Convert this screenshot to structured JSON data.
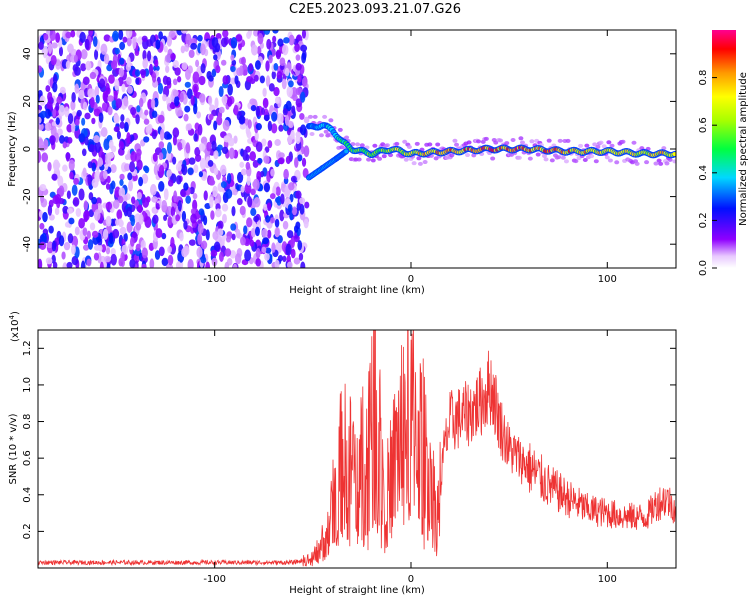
{
  "title": "C2E5.2023.093.21.07.G26",
  "chart_data": [
    {
      "type": "heatmap",
      "xlabel": "Height of straight line (km)",
      "ylabel": "Frequency (Hz)",
      "xlim": [
        -190,
        135
      ],
      "ylim": [
        -50,
        50
      ],
      "x_ticks": [
        -100,
        0,
        100
      ],
      "x_tick_labels": [
        "-100",
        "0",
        "100"
      ],
      "y_ticks": [
        -40,
        -20,
        0,
        20,
        40
      ],
      "y_tick_labels": [
        "-40",
        "-20",
        "0",
        "20",
        "40"
      ],
      "colorbar": {
        "label": "Normalized spectral amplitude",
        "range": [
          0,
          1
        ],
        "ticks": [
          0.0,
          0.2,
          0.4,
          0.6,
          0.8
        ],
        "tick_labels": [
          "0.0",
          "0.2",
          "0.4",
          "0.6",
          "0.8"
        ]
      },
      "noise_region": {
        "x": [
          -190,
          -53
        ],
        "y": [
          -50,
          50
        ],
        "amplitude": [
          0.05,
          0.3
        ]
      },
      "ridge": [
        {
          "x": -52,
          "freq": 9,
          "amp": 0.3
        },
        {
          "x": -45,
          "freq": 10,
          "amp": 0.35
        },
        {
          "x": -40,
          "freq": 8,
          "amp": 0.4
        },
        {
          "x": -35,
          "freq": 3,
          "amp": 0.45
        },
        {
          "x": -30,
          "freq": 0,
          "amp": 0.5
        },
        {
          "x": -20,
          "freq": -2,
          "amp": 0.55
        },
        {
          "x": -10,
          "freq": 0,
          "amp": 0.6
        },
        {
          "x": 0,
          "freq": -2,
          "amp": 0.7
        },
        {
          "x": 20,
          "freq": -1,
          "amp": 0.8
        },
        {
          "x": 40,
          "freq": 0,
          "amp": 0.85
        },
        {
          "x": 60,
          "freq": 0,
          "amp": 0.85
        },
        {
          "x": 80,
          "freq": -1,
          "amp": 0.8
        },
        {
          "x": 100,
          "freq": -1,
          "amp": 0.7
        },
        {
          "x": 120,
          "freq": -2,
          "amp": 0.7
        },
        {
          "x": 135,
          "freq": -2,
          "amp": 0.75
        }
      ],
      "secondary_branch": [
        {
          "x": -52,
          "freq": -12
        },
        {
          "x": -45,
          "freq": -8
        },
        {
          "x": -38,
          "freq": -4
        },
        {
          "x": -33,
          "freq": -1
        }
      ]
    },
    {
      "type": "line",
      "xlabel": "Height of straight line (km)",
      "ylabel": "SNR (10 * v/v)",
      "y_scale_label": "(x10",
      "y_scale_exp": "4",
      "y_scale_close": ")",
      "xlim": [
        -190,
        135
      ],
      "ylim": [
        0,
        1.3
      ],
      "x_ticks": [
        -100,
        0,
        100
      ],
      "x_tick_labels": [
        "-100",
        "0",
        "100"
      ],
      "y_ticks": [
        0.2,
        0.4,
        0.6,
        0.8,
        1.0,
        1.2
      ],
      "y_tick_labels": [
        "0.2",
        "0.4",
        "0.6",
        "0.8",
        "1.0",
        "1.2"
      ],
      "color": "#ee3333",
      "series": [
        {
          "x": [
            -190,
            -150,
            -100,
            -60,
            -50,
            -42,
            -38,
            -35,
            -30,
            -25,
            -22,
            -19,
            -15,
            -12,
            -5,
            0,
            5,
            10,
            13,
            17,
            20,
            25,
            30,
            35,
            38,
            40,
            42,
            45,
            50,
            60,
            70,
            80,
            90,
            100,
            110,
            120,
            125,
            130,
            135
          ],
          "y": [
            0.03,
            0.03,
            0.03,
            0.03,
            0.05,
            0.2,
            0.45,
            0.6,
            0.55,
            0.65,
            0.6,
            1.3,
            0.55,
            0.4,
            0.75,
            0.85,
            0.7,
            0.55,
            0.25,
            0.65,
            0.8,
            0.82,
            0.85,
            0.9,
            0.95,
            1.0,
            0.95,
            0.8,
            0.65,
            0.55,
            0.45,
            0.38,
            0.32,
            0.3,
            0.28,
            0.28,
            0.35,
            0.38,
            0.32
          ]
        }
      ]
    }
  ]
}
